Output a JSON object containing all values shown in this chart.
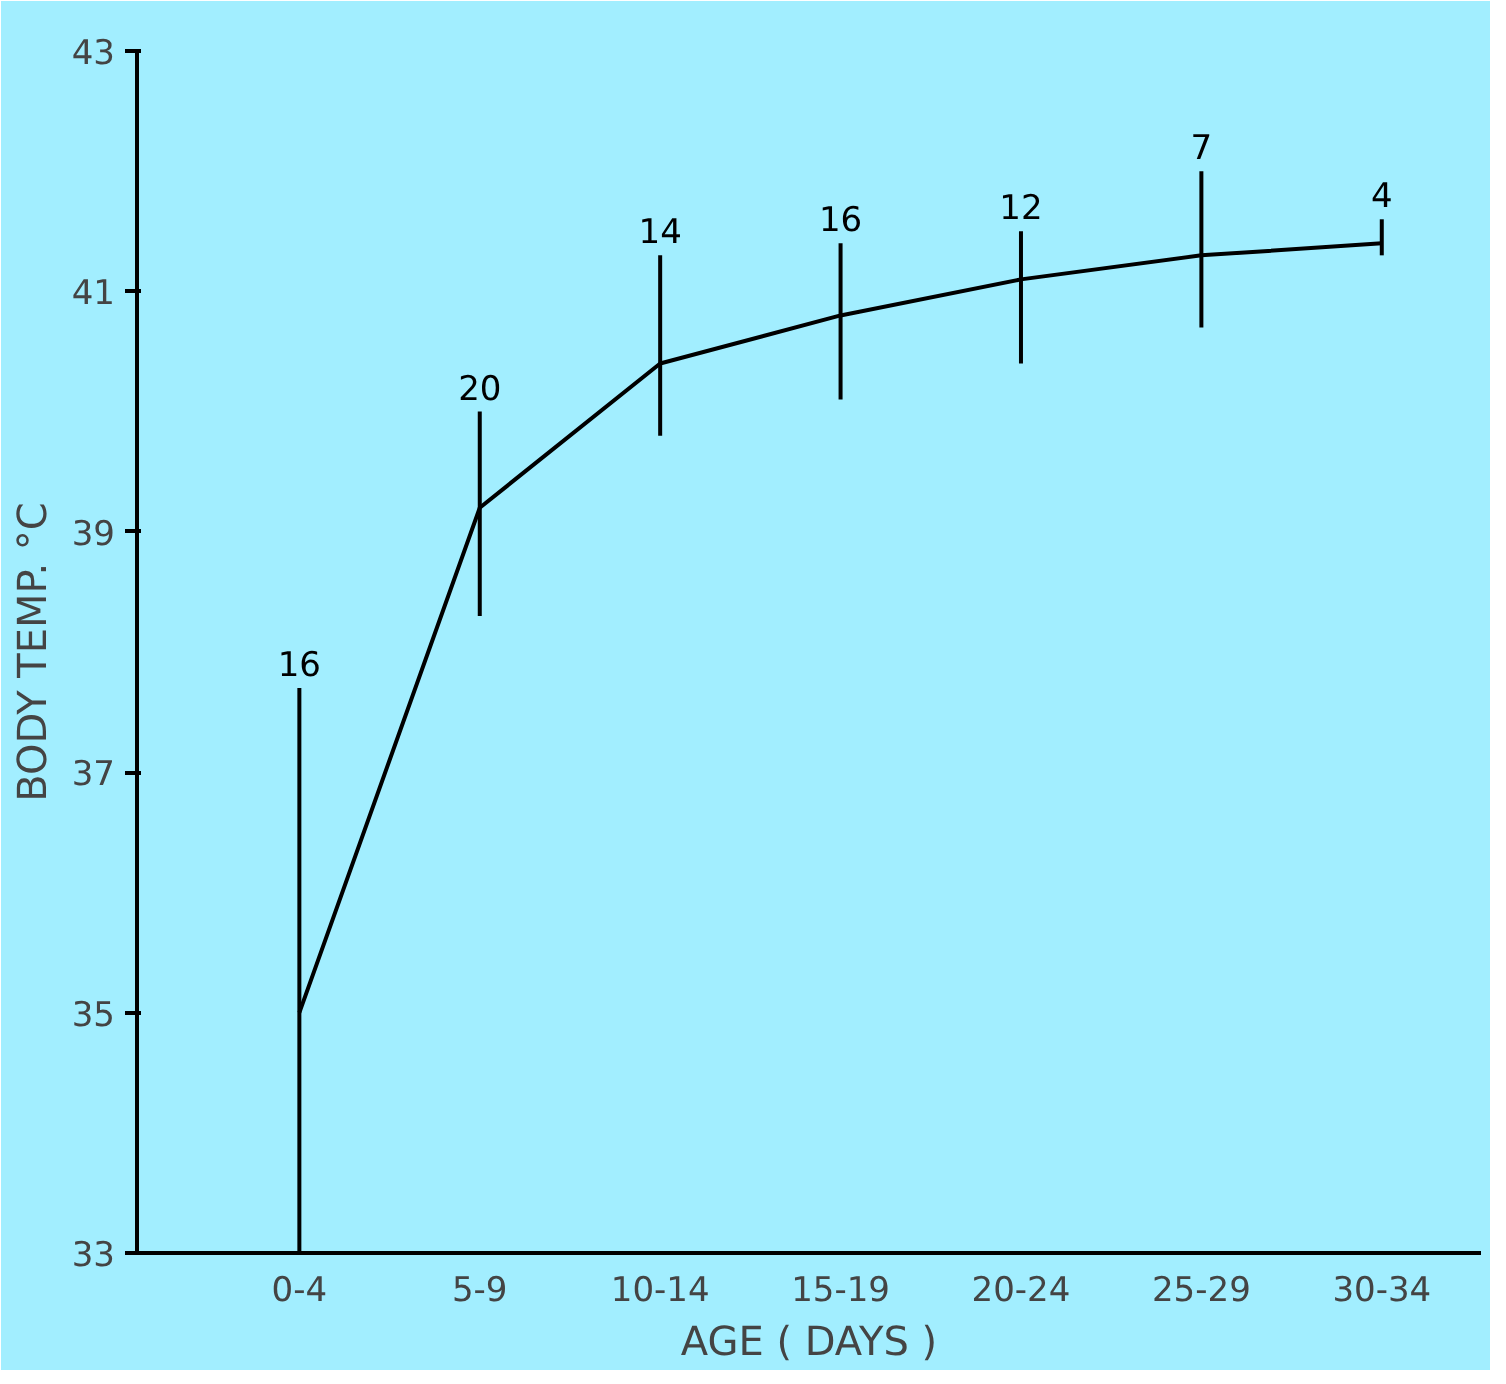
{
  "chart_data": {
    "type": "line",
    "xlabel": "AGE ( DAYS )",
    "ylabel": "BODY TEMP. °C",
    "categories": [
      "0-4",
      "5-9",
      "10-14",
      "15-19",
      "20-24",
      "25-29",
      "30-34"
    ],
    "values": [
      35.0,
      39.2,
      40.4,
      40.8,
      41.1,
      41.3,
      41.4
    ],
    "errors": [
      [
        33.0,
        37.7
      ],
      [
        38.3,
        40.0
      ],
      [
        39.8,
        41.3
      ],
      [
        40.1,
        41.4
      ],
      [
        40.4,
        41.5
      ],
      [
        40.7,
        42.0
      ],
      [
        41.3,
        41.6
      ]
    ],
    "color": "#000000",
    "ylim": [
      33,
      43
    ],
    "yticks": [
      33,
      35,
      37,
      39,
      41,
      43
    ],
    "grid": false,
    "marker": "none",
    "line_style": "solid",
    "annotations": [
      {
        "text": "16",
        "x": "0-4",
        "y": 37.7
      },
      {
        "text": "20",
        "x": "5-9",
        "y": 40.0
      },
      {
        "text": "14",
        "x": "10-14",
        "y": 41.3
      },
      {
        "text": "16",
        "x": "15-19",
        "y": 41.4
      },
      {
        "text": "12",
        "x": "20-24",
        "y": 41.5
      },
      {
        "text": "7",
        "x": "25-29",
        "y": 42.0
      },
      {
        "text": "4",
        "x": "30-34",
        "y": 41.6
      }
    ]
  }
}
